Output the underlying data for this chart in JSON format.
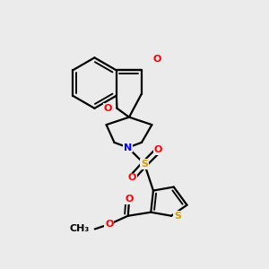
{
  "background_color": "#ebebeb",
  "figsize": [
    3.0,
    3.0
  ],
  "dpi": 100,
  "bond_color": "#000000",
  "bond_width": 1.6,
  "atom_colors": {
    "O": "#ff0000",
    "N": "#0000ff",
    "S_sulfonyl": "#d4a000",
    "S_thiophene": "#d4a000",
    "C": "#000000"
  },
  "font_size": 8.0,
  "atom_bg": "#ebebeb",
  "xlim": [
    0,
    3
  ],
  "ylim": [
    0,
    3
  ]
}
